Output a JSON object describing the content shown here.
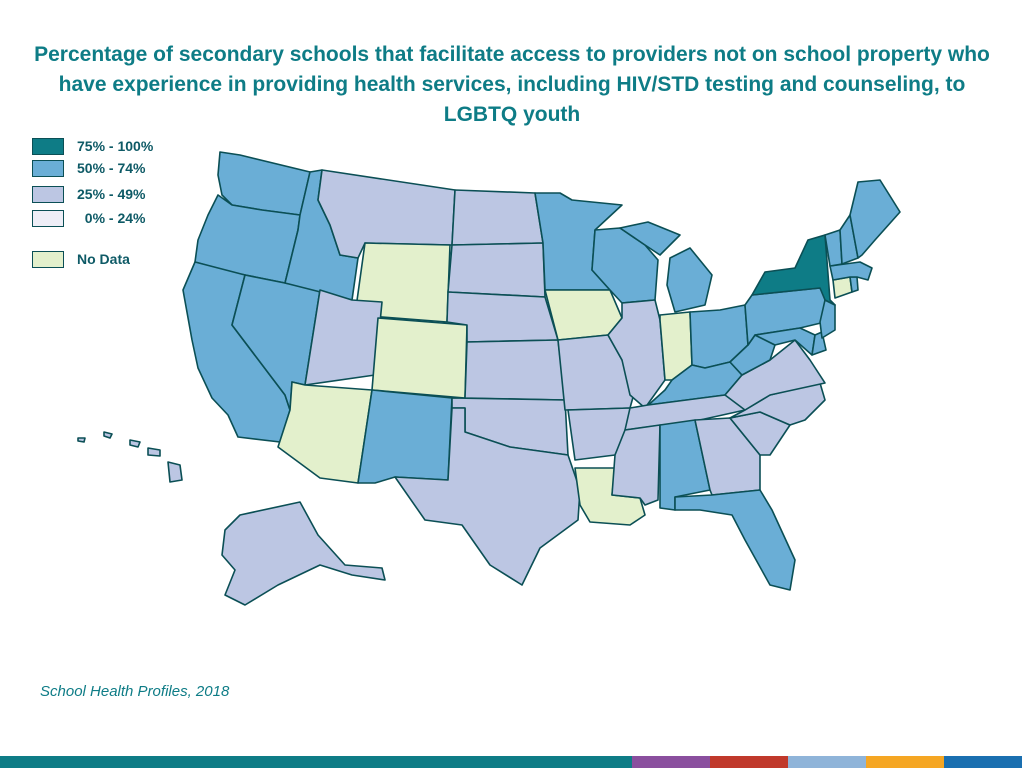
{
  "title": "Percentage of secondary schools that facilitate access to providers not on school property who have experience in providing health services, including HIV/STD testing and counseling, to LGBTQ youth",
  "source": "School Health Profiles, 2018",
  "colors": {
    "title": "#0e7c86",
    "border": "#0b4f55",
    "cat_75_100": "#0e7c86",
    "cat_50_74": "#6aaed6",
    "cat_25_49": "#bcc6e3",
    "cat_0_24": "#eeeef7",
    "cat_nodata": "#e3f0cc"
  },
  "legend": [
    {
      "key": "cat_75_100",
      "label": "75% - 100%"
    },
    {
      "key": "cat_50_74",
      "label": "50% - 74%"
    },
    {
      "key": "cat_25_49",
      "label": "25% - 49%"
    },
    {
      "key": "cat_0_24",
      "label": "  0% - 24%"
    },
    {
      "key": "cat_nodata",
      "label": "No Data"
    }
  ],
  "states": {
    "WA": "cat_50_74",
    "OR": "cat_50_74",
    "CA": "cat_50_74",
    "NV": "cat_50_74",
    "ID": "cat_50_74",
    "MT": "cat_25_49",
    "WY": "cat_nodata",
    "UT": "cat_25_49",
    "CO": "cat_nodata",
    "AZ": "cat_nodata",
    "NM": "cat_50_74",
    "ND": "cat_25_49",
    "SD": "cat_25_49",
    "NE": "cat_25_49",
    "KS": "cat_25_49",
    "OK": "cat_25_49",
    "TX": "cat_25_49",
    "MN": "cat_50_74",
    "IA": "cat_nodata",
    "MO": "cat_25_49",
    "AR": "cat_25_49",
    "LA": "cat_nodata",
    "WI": "cat_50_74",
    "IL": "cat_25_49",
    "MI": "cat_50_74",
    "IN": "cat_nodata",
    "OH": "cat_50_74",
    "KY": "cat_50_74",
    "TN": "cat_25_49",
    "MS": "cat_25_49",
    "AL": "cat_50_74",
    "GA": "cat_25_49",
    "FL": "cat_50_74",
    "SC": "cat_25_49",
    "NC": "cat_25_49",
    "VA": "cat_25_49",
    "WV": "cat_50_74",
    "MD": "cat_50_74",
    "DE": "cat_50_74",
    "NJ": "cat_50_74",
    "PA": "cat_50_74",
    "NY": "cat_75_100",
    "CT": "cat_nodata",
    "RI": "cat_50_74",
    "MA": "cat_50_74",
    "VT": "cat_50_74",
    "NH": "cat_50_74",
    "ME": "cat_50_74",
    "AK": "cat_25_49",
    "HI": "cat_25_49"
  },
  "footer_colors": [
    "#0e7c86",
    "#0e7c86",
    "#0e7c86",
    "#0e7c86",
    "#8a4f9e",
    "#c0392b",
    "#8fb4d9",
    "#f5a623",
    "#1a6fb0"
  ]
}
